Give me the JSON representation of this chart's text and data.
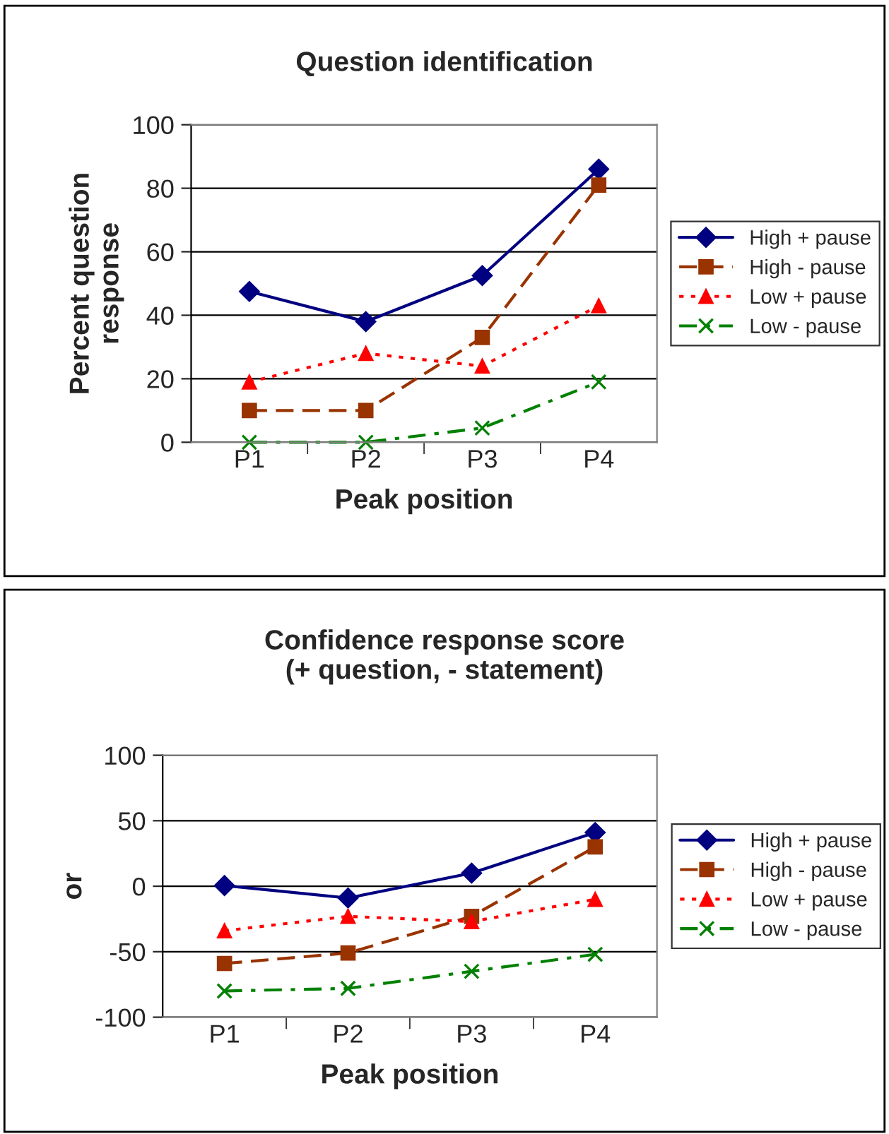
{
  "chart_data": [
    {
      "type": "line",
      "title": "Question identification",
      "xlabel": "Peak position",
      "ylabel": "Percent question\nresponse",
      "categories": [
        "P1",
        "P2",
        "P3",
        "P4"
      ],
      "ylim": [
        0,
        100
      ],
      "yticks": [
        0,
        20,
        40,
        60,
        80,
        100
      ],
      "grid": "y",
      "legend": "right",
      "series": [
        {
          "name": "High + pause",
          "color": "#000080",
          "marker": "diamond",
          "line_style": "solid",
          "values": [
            47.5,
            38,
            52.5,
            86
          ]
        },
        {
          "name": "High - pause",
          "color": "#993300",
          "marker": "square",
          "line_style": "dashed",
          "values": [
            10,
            10,
            33,
            81
          ]
        },
        {
          "name": "Low + pause",
          "color": "#ff0000",
          "marker": "triangle",
          "line_style": "dotted",
          "values": [
            19,
            28,
            24,
            43
          ]
        },
        {
          "name": "Low - pause",
          "color": "#008000",
          "marker": "cross",
          "line_style": "dashdot",
          "values": [
            0,
            0,
            4.5,
            19
          ]
        }
      ]
    },
    {
      "type": "line",
      "title": "Confidence response score\n(+ question, - statement)",
      "xlabel": "Peak position",
      "ylabel": "or",
      "categories": [
        "P1",
        "P2",
        "P3",
        "P4"
      ],
      "ylim": [
        -100,
        100
      ],
      "yticks": [
        -100,
        -50,
        0,
        50,
        100
      ],
      "grid": "y",
      "legend": "right",
      "series": [
        {
          "name": "High + pause",
          "color": "#000080",
          "marker": "diamond",
          "line_style": "solid",
          "values": [
            0.5,
            -9,
            10,
            41
          ]
        },
        {
          "name": "High - pause",
          "color": "#993300",
          "marker": "square",
          "line_style": "dashed",
          "values": [
            -59,
            -51,
            -23,
            30
          ]
        },
        {
          "name": "Low + pause",
          "color": "#ff0000",
          "marker": "triangle",
          "line_style": "dotted",
          "values": [
            -34,
            -23,
            -27,
            -10
          ]
        },
        {
          "name": "Low - pause",
          "color": "#008000",
          "marker": "cross",
          "line_style": "dashdot",
          "values": [
            -80,
            -78,
            -65,
            -52
          ]
        }
      ]
    }
  ]
}
